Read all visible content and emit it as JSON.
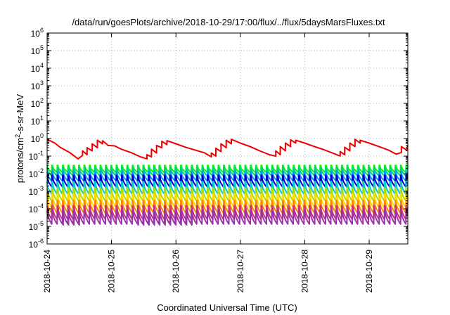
{
  "chart_data": {
    "type": "line",
    "title": "/data/run/goesPlots/archive/2018-10-29/17:00/flux/../flux/5daysMarsFluxes.txt",
    "xlabel": "Coordinated Universal Time (UTC)",
    "ylabel": {
      "prefix": "protons/cm",
      "sup": "2",
      "suffix": "-s-sr-MeV"
    },
    "y_scale": "log",
    "ylim_exp": [
      -6,
      6
    ],
    "y_tick_base": "10",
    "y_tick_exponents": [
      "6",
      "5",
      "4",
      "3",
      "2",
      "1",
      "0",
      "-1",
      "-2",
      "-3",
      "-4",
      "-5",
      "-6"
    ],
    "x_ticks": [
      "2018-10-24",
      "2018-10-25",
      "2018-10-26",
      "2018-10-27",
      "2018-10-28",
      "2018-10-29"
    ],
    "xlim_days": [
      0,
      5.6
    ],
    "grid": true,
    "series": [
      {
        "color": "#ee0000",
        "x": [
          0,
          0.12,
          0.2,
          0.35,
          0.48,
          0.55,
          0.55,
          0.62,
          0.62,
          0.7,
          0.7,
          0.78,
          0.78,
          0.86,
          0.86,
          0.95,
          1.05,
          1.15,
          1.3,
          1.45,
          1.55,
          1.55,
          1.62,
          1.62,
          1.7,
          1.7,
          1.78,
          1.78,
          1.86,
          1.86,
          2.0,
          2.15,
          2.3,
          2.45,
          2.55,
          2.55,
          2.62,
          2.62,
          2.7,
          2.7,
          2.78,
          2.78,
          2.86,
          2.86,
          3.0,
          3.15,
          3.3,
          3.45,
          3.55,
          3.55,
          3.62,
          3.62,
          3.7,
          3.7,
          3.78,
          3.78,
          3.86,
          3.86,
          4.0,
          4.15,
          4.3,
          4.45,
          4.55,
          4.55,
          4.62,
          4.62,
          4.7,
          4.7,
          4.78,
          4.78,
          4.86,
          4.86,
          5.0,
          5.15,
          5.3,
          5.42,
          5.5,
          5.5,
          5.58,
          5.6
        ],
        "y": [
          0.9,
          0.55,
          0.32,
          0.16,
          0.07,
          0.11,
          0.2,
          0.12,
          0.3,
          0.2,
          0.5,
          0.3,
          0.8,
          0.5,
          0.75,
          0.4,
          0.38,
          0.25,
          0.16,
          0.09,
          0.07,
          0.12,
          0.09,
          0.25,
          0.15,
          0.4,
          0.3,
          0.7,
          0.45,
          0.75,
          0.5,
          0.32,
          0.22,
          0.15,
          0.09,
          0.15,
          0.1,
          0.28,
          0.18,
          0.5,
          0.3,
          0.8,
          0.5,
          0.9,
          0.55,
          0.35,
          0.2,
          0.12,
          0.1,
          0.2,
          0.12,
          0.35,
          0.2,
          0.55,
          0.35,
          0.85,
          0.55,
          0.8,
          0.55,
          0.35,
          0.23,
          0.14,
          0.1,
          0.18,
          0.12,
          0.32,
          0.2,
          0.55,
          0.35,
          0.9,
          0.55,
          0.8,
          0.55,
          0.35,
          0.22,
          0.13,
          0.16,
          0.35,
          0.22,
          0.4
        ]
      },
      {
        "color": "#00ff00",
        "period_days": 0.0833,
        "y_low": 0.011,
        "y_high": 0.03
      },
      {
        "color": "#00d07f",
        "period_days": 0.0833,
        "y_low": 0.007,
        "y_high": 0.022
      },
      {
        "color": "#0099ff",
        "period_days": 0.0833,
        "y_low": 0.0035,
        "y_high": 0.013
      },
      {
        "color": "#0000cc",
        "period_days": 0.0833,
        "y_low": 0.0016,
        "y_high": 0.008
      },
      {
        "color": "#00cccc",
        "period_days": 0.0833,
        "y_low": 0.0006,
        "y_high": 0.0035
      },
      {
        "color": "#aadd00",
        "period_days": 0.0833,
        "y_low": 0.00025,
        "y_high": 0.0015
      },
      {
        "color": "#ffdd00",
        "period_days": 0.0833,
        "y_low": 0.0001,
        "y_high": 0.0007
      },
      {
        "color": "#ff8800",
        "period_days": 0.0833,
        "y_low": 5e-05,
        "y_high": 0.0003
      },
      {
        "color": "#cc3377",
        "period_days": 0.0833,
        "y_low": 2.2e-05,
        "y_high": 0.00015
      },
      {
        "color": "#9933aa",
        "period_days": 0.0833,
        "y_low": 1.2e-05,
        "y_high": 8e-05
      }
    ]
  }
}
